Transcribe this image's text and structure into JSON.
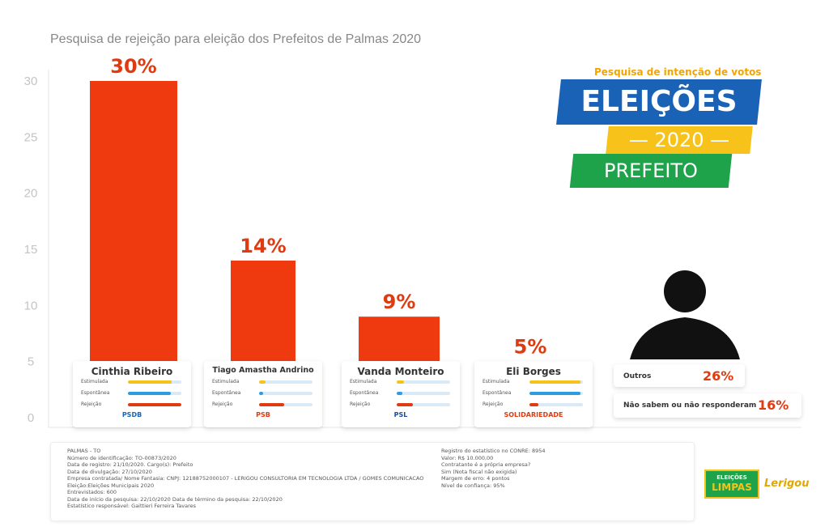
{
  "title": "Pesquisa de rejeição para eleição dos Prefeitos de Palmas 2020",
  "chart_data": {
    "type": "bar",
    "ylim": [
      0,
      30
    ],
    "yticks": [
      0,
      5,
      10,
      15,
      20,
      25,
      30
    ],
    "categories": [
      "Cinthia Ribeiro",
      "Tiago Amastha Andrino",
      "Vanda Monteiro",
      "Eli Borges"
    ],
    "values": [
      30,
      14,
      9,
      5
    ],
    "value_labels": [
      "30%",
      "14%",
      "9%",
      "5%"
    ],
    "bar_color": "#ef3a10",
    "value_label_color": "#e03a10"
  },
  "candidates": [
    {
      "name": "Cinthia Ribeiro",
      "party": "PSDB",
      "party_color": "#1a62b6",
      "rows": [
        {
          "label": "Estimulada",
          "fill": 0.82,
          "color": "#f7c21a"
        },
        {
          "label": "Espontânea",
          "fill": 0.8,
          "color": "#2d9be0"
        },
        {
          "label": "Rejeição",
          "fill": 1.0,
          "color": "#e03a10"
        }
      ]
    },
    {
      "name": "Tiago Amastha Andrino",
      "party": "PSB",
      "party_color": "#e03a10",
      "rows": [
        {
          "label": "Estimulada",
          "fill": 0.12,
          "color": "#f7c21a"
        },
        {
          "label": "Espontânea",
          "fill": 0.08,
          "color": "#2d9be0"
        },
        {
          "label": "Rejeição",
          "fill": 0.47,
          "color": "#e03a10"
        }
      ]
    },
    {
      "name": "Vanda Monteiro",
      "party": "PSL",
      "party_color": "#1a4aa0",
      "rows": [
        {
          "label": "Estimulada",
          "fill": 0.14,
          "color": "#f7c21a"
        },
        {
          "label": "Espontânea",
          "fill": 0.1,
          "color": "#2d9be0"
        },
        {
          "label": "Rejeição",
          "fill": 0.3,
          "color": "#e03a10"
        }
      ]
    },
    {
      "name": "Eli Borges",
      "party": "SOLIDARIEDADE",
      "party_color": "#e03a10",
      "rows": [
        {
          "label": "Estimulada",
          "fill": 0.95,
          "color": "#f7c21a"
        },
        {
          "label": "Espontânea",
          "fill": 0.95,
          "color": "#2d9be0"
        },
        {
          "label": "Rejeição",
          "fill": 0.16,
          "color": "#e03a10"
        }
      ]
    }
  ],
  "others": {
    "label": "Outros",
    "value": "26%"
  },
  "no_answer": {
    "label": "Não sabem ou não responderam",
    "value": "16%"
  },
  "logo": {
    "kicker": "Pesquisa de intenção de votos",
    "main": "ELEIÇÕES",
    "year": "— 2020 —",
    "office": "PREFEITO"
  },
  "info_left": [
    "PALMAS - TO",
    "Número de identificação: TO-00873/2020",
    "Data de registro: 21/10/2020.          Cargo(s): Prefeito",
    "Data de divulgação: 27/10/2020",
    "Empresa contratada/ Nome Fantasia: CNPJ: 12188752000107 - LERIGOU CONSULTORIA EM TECNOLOGIA LTDA / GOMES COMUNICACAO",
    "Eleição:Eleições Municipais 2020",
    "Entrevistados: 600",
    "Data de início da pesquisa: 22/10/2020          Data de término da pesquisa: 22/10/2020",
    "Estatístico responsável: Gaittieri Ferreira Tavares"
  ],
  "info_right": [
    "Registro do estatístico no CONRE: 8954",
    "Valor: R$ 10.000,00",
    "Contratante é a própria empresa?",
    "Sim (Nota fiscal não exigida)",
    "Margem de erro: 4 pontos",
    "Nível de confiança: 95%"
  ],
  "badges": {
    "eleicoes_l1": "ELEIÇÕES",
    "eleicoes_l2": "LIMPAS",
    "lerigou": "Lerigou"
  }
}
